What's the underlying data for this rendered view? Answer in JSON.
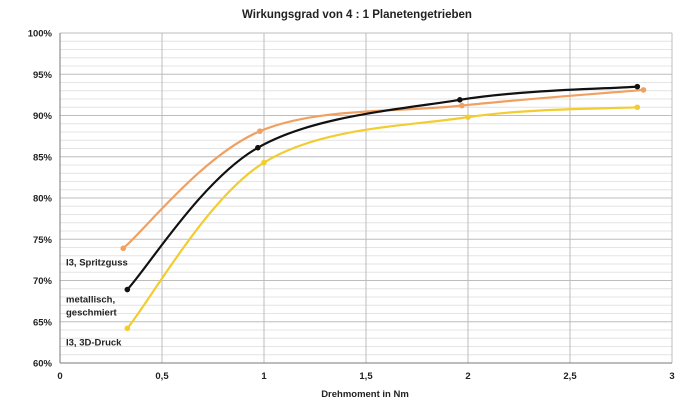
{
  "chart_data": {
    "type": "line",
    "title": "Wirkungsgrad von 4 : 1 Planetengetrieben",
    "xlabel": "Drehmoment in Nm",
    "ylabel": "",
    "xlim": [
      0,
      3
    ],
    "ylim": [
      60,
      100
    ],
    "x_ticks": [
      "0",
      "0,5",
      "1",
      "1,5",
      "2",
      "2,5",
      "3"
    ],
    "y_ticks": [
      "60%",
      "65%",
      "70%",
      "75%",
      "80%",
      "85%",
      "90%",
      "95%",
      "100%"
    ],
    "grid": true,
    "series": [
      {
        "name": "I3, Spritzguss",
        "color": "#f0a060",
        "label_lines": [
          "I3, Spritzguss"
        ],
        "points": [
          [
            0.31,
            73.9
          ],
          [
            0.98,
            88.1
          ],
          [
            1.97,
            91.2
          ],
          [
            2.86,
            93.1
          ]
        ]
      },
      {
        "name": "metallisch, geschmiert",
        "color": "#111111",
        "label_lines": [
          "metallisch,",
          "geschmiert"
        ],
        "points": [
          [
            0.33,
            68.9
          ],
          [
            0.97,
            86.1
          ],
          [
            1.96,
            91.9
          ],
          [
            2.83,
            93.5
          ]
        ]
      },
      {
        "name": "I3, 3D-Druck",
        "color": "#f2cc30",
        "label_lines": [
          "I3, 3D-Druck"
        ],
        "points": [
          [
            0.33,
            64.2
          ],
          [
            1.0,
            84.3
          ],
          [
            2.0,
            89.8
          ],
          [
            2.83,
            91.0
          ]
        ]
      }
    ]
  }
}
